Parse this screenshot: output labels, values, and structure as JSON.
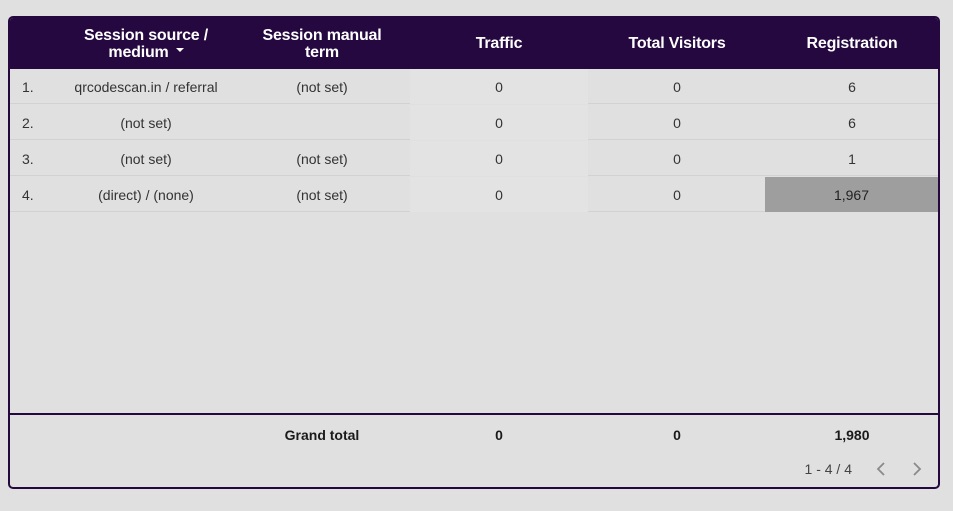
{
  "table": {
    "columns": [
      {
        "line1": "Session source /",
        "line2": "medium",
        "sorted": true
      },
      {
        "line1": "Session manual",
        "line2": "term"
      },
      {
        "line1": "Traffic"
      },
      {
        "line1": "Total Visitors"
      },
      {
        "line1": "Registration"
      }
    ],
    "rows": [
      {
        "index": "1.",
        "source": "qrcodescan.in / referral",
        "term": "(not set)",
        "traffic": "0",
        "visitors": "0",
        "registration": "6"
      },
      {
        "index": "2.",
        "source": "(not set)",
        "term": "",
        "traffic": "0",
        "visitors": "0",
        "registration": "6"
      },
      {
        "index": "3.",
        "source": "(not set)",
        "term": "(not set)",
        "traffic": "0",
        "visitors": "0",
        "registration": "1"
      },
      {
        "index": "4.",
        "source": "(direct) / (none)",
        "term": "(not set)",
        "traffic": "0",
        "visitors": "0",
        "registration": "1,967"
      }
    ],
    "grand_total": {
      "label": "Grand total",
      "traffic": "0",
      "visitors": "0",
      "registration": "1,980"
    },
    "pagination": {
      "range": "1 - 4 / 4"
    }
  },
  "colors": {
    "header_bg": "#250840",
    "header_text": "#ffffff",
    "highlight_cell": "#9e9e9e",
    "background": "#e0e0e0"
  },
  "icons": {
    "sort": "sort-descending-icon",
    "prev": "chevron-left-icon",
    "next": "chevron-right-icon"
  }
}
